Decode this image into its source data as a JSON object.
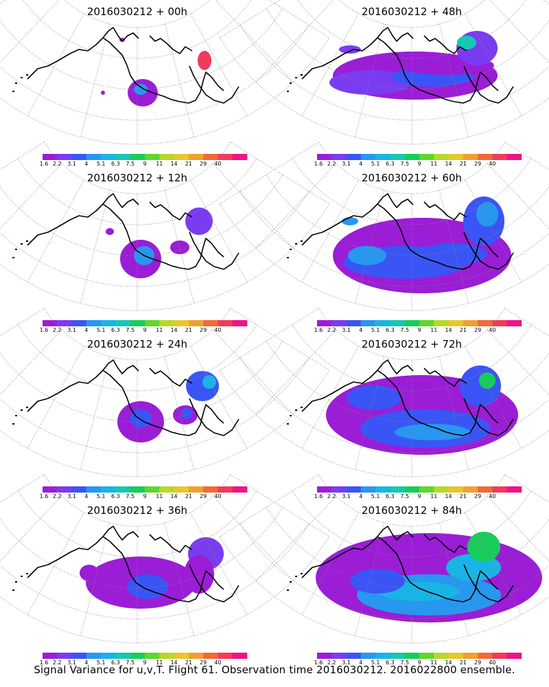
{
  "caption": "Signal Variance for u,v,T. Flight 61. Observation time 2016030212. 2016022800 ensemble.",
  "colorbar": {
    "labels": [
      "1.6",
      "2.2",
      "3.1",
      "4",
      "5.1",
      "6.3",
      "7.5",
      "9",
      "11",
      "14",
      "21",
      "29",
      "40"
    ],
    "colors": [
      "#9b1dd6",
      "#7a3cf0",
      "#3a55f5",
      "#2797f0",
      "#19b4e6",
      "#15c8b4",
      "#18cc5a",
      "#5fd62d",
      "#b7d82a",
      "#e6c82b",
      "#f0a030",
      "#f06a37",
      "#f23a5a",
      "#ee1485"
    ]
  },
  "panels": [
    {
      "title": "2016030212 + 00h",
      "forecast_hour": 0
    },
    {
      "title": "2016030212 + 48h",
      "forecast_hour": 48
    },
    {
      "title": "2016030212 + 12h",
      "forecast_hour": 12
    },
    {
      "title": "2016030212 + 60h",
      "forecast_hour": 60
    },
    {
      "title": "2016030212 + 24h",
      "forecast_hour": 24
    },
    {
      "title": "2016030212 + 72h",
      "forecast_hour": 72
    },
    {
      "title": "2016030212 + 36h",
      "forecast_hour": 36
    },
    {
      "title": "2016030212 + 84h",
      "forecast_hour": 84
    }
  ]
}
